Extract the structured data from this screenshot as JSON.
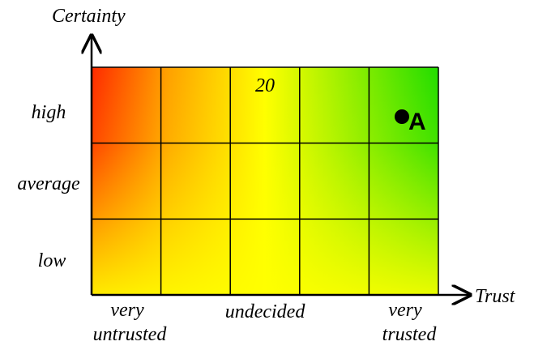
{
  "axes": {
    "y_title": "Certainty",
    "x_title": "Trust",
    "y_levels": [
      "high",
      "average",
      "low"
    ],
    "x_levels": [
      {
        "lines": [
          "very",
          "untrusted"
        ]
      },
      {
        "lines": [
          "undecided"
        ]
      },
      {
        "lines": [
          "very",
          "trusted"
        ]
      }
    ]
  },
  "grid": {
    "columns": 5,
    "rows": 3,
    "label": "20"
  },
  "point": {
    "label": "A",
    "trust_column": 5,
    "certainty_row": "high"
  },
  "colors": {
    "red": "#ff2a00",
    "orange": "#ffa000",
    "yellow": "#ffff00",
    "green": "#22dd00",
    "grid_line": "#000000"
  }
}
